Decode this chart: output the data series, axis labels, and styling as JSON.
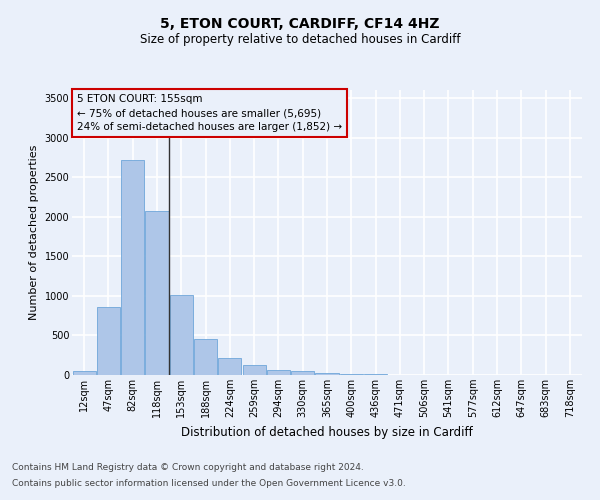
{
  "title": "5, ETON COURT, CARDIFF, CF14 4HZ",
  "subtitle": "Size of property relative to detached houses in Cardiff",
  "xlabel": "Distribution of detached houses by size in Cardiff",
  "ylabel": "Number of detached properties",
  "footnote1": "Contains HM Land Registry data © Crown copyright and database right 2024.",
  "footnote2": "Contains public sector information licensed under the Open Government Licence v3.0.",
  "annotation_line1": "5 ETON COURT: 155sqm",
  "annotation_line2": "← 75% of detached houses are smaller (5,695)",
  "annotation_line3": "24% of semi-detached houses are larger (1,852) →",
  "categories": [
    "12sqm",
    "47sqm",
    "82sqm",
    "118sqm",
    "153sqm",
    "188sqm",
    "224sqm",
    "259sqm",
    "294sqm",
    "330sqm",
    "365sqm",
    "400sqm",
    "436sqm",
    "471sqm",
    "506sqm",
    "541sqm",
    "577sqm",
    "612sqm",
    "647sqm",
    "683sqm",
    "718sqm"
  ],
  "values": [
    55,
    855,
    2720,
    2075,
    1010,
    460,
    220,
    130,
    65,
    50,
    28,
    18,
    10,
    5,
    2,
    1,
    0,
    0,
    0,
    0,
    0
  ],
  "bar_color": "#aec6e8",
  "bar_edge_color": "#5b9bd5",
  "ylim": [
    0,
    3600
  ],
  "yticks": [
    0,
    500,
    1000,
    1500,
    2000,
    2500,
    3000,
    3500
  ],
  "bg_color": "#eaf0fa",
  "grid_color": "#ffffff",
  "annotation_box_color": "#cc0000",
  "vline_color": "#333333",
  "vline_x_index": 3.5,
  "title_fontsize": 10,
  "subtitle_fontsize": 8.5,
  "ylabel_fontsize": 8,
  "xlabel_fontsize": 8.5,
  "tick_fontsize": 7,
  "footnote_fontsize": 6.5,
  "annotation_fontsize": 7.5
}
